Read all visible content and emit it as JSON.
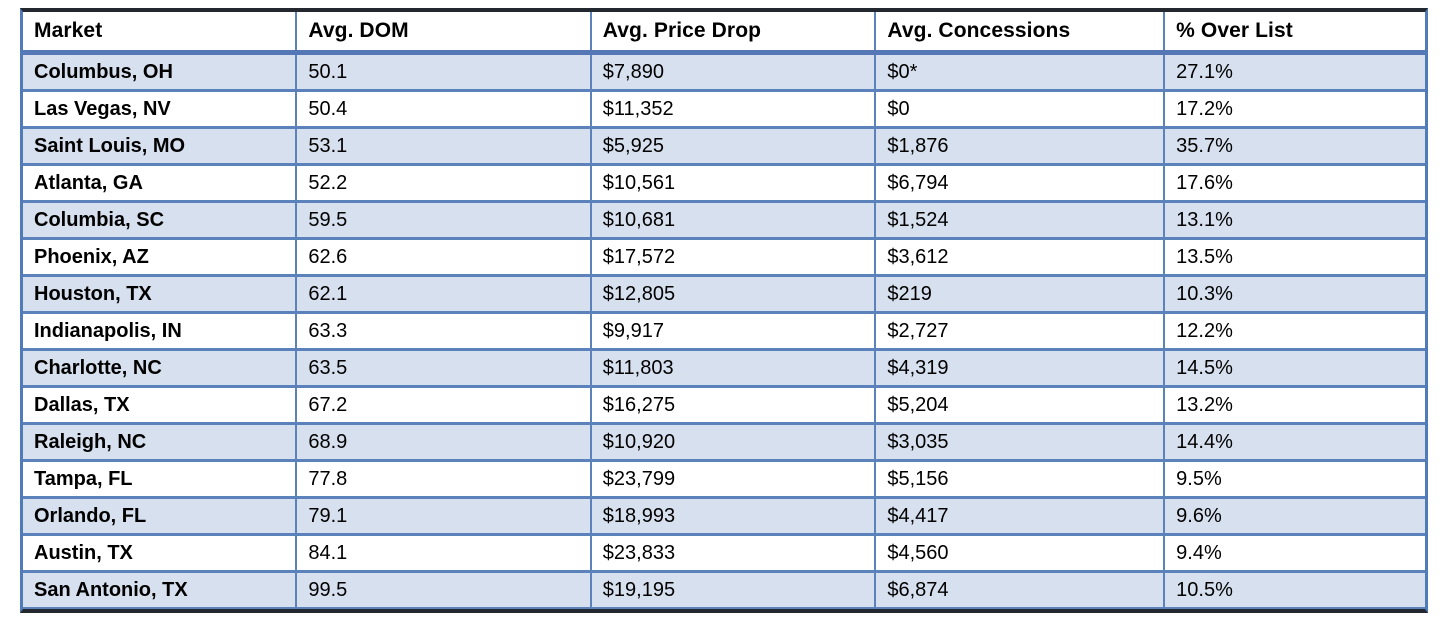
{
  "chart_data": {
    "type": "table",
    "columns": [
      "Market",
      "Avg. DOM",
      "Avg. Price Drop",
      "Avg. Concessions",
      "% Over List"
    ],
    "rows": [
      [
        "Columbus, OH",
        "50.1",
        "$7,890",
        "$0*",
        "27.1%"
      ],
      [
        "Las Vegas, NV",
        "50.4",
        "$11,352",
        "$0",
        "17.2%"
      ],
      [
        "Saint Louis, MO",
        "53.1",
        "$5,925",
        "$1,876",
        "35.7%"
      ],
      [
        "Atlanta, GA",
        "52.2",
        "$10,561",
        "$6,794",
        "17.6%"
      ],
      [
        "Columbia, SC",
        "59.5",
        "$10,681",
        "$1,524",
        "13.1%"
      ],
      [
        "Phoenix, AZ",
        "62.6",
        "$17,572",
        "$3,612",
        "13.5%"
      ],
      [
        "Houston, TX",
        "62.1",
        "$12,805",
        "$219",
        "10.3%"
      ],
      [
        "Indianapolis, IN",
        "63.3",
        "$9,917",
        "$2,727",
        "12.2%"
      ],
      [
        "Charlotte, NC",
        "63.5",
        "$11,803",
        "$4,319",
        "14.5%"
      ],
      [
        "Dallas, TX",
        "67.2",
        "$16,275",
        "$5,204",
        "13.2%"
      ],
      [
        "Raleigh, NC",
        "68.9",
        "$10,920",
        "$3,035",
        "14.4%"
      ],
      [
        "Tampa, FL",
        "77.8",
        "$23,799",
        "$5,156",
        "9.5%"
      ],
      [
        "Orlando, FL",
        "79.1",
        "$18,993",
        "$4,417",
        "9.6%"
      ],
      [
        "Austin, TX",
        "84.1",
        "$23,833",
        "$4,560",
        "9.4%"
      ],
      [
        "San Antonio, TX",
        "99.5",
        "$19,195",
        "$6,874",
        "10.5%"
      ]
    ],
    "layout": {
      "grid": true,
      "alternating_rows": true,
      "first_column_bold": true,
      "header_position": "top"
    }
  },
  "colors": {
    "inner_border_blue": "#5b82bb",
    "side_border_blue": "#4f7cb8",
    "header_separator_blue": "#5577b5",
    "outer_dark_border": "#23272e",
    "alt_row_fill": "#d7e0ee",
    "row_fill": "#ffffff",
    "header_fill": "#ffffff",
    "text": "#000000"
  }
}
